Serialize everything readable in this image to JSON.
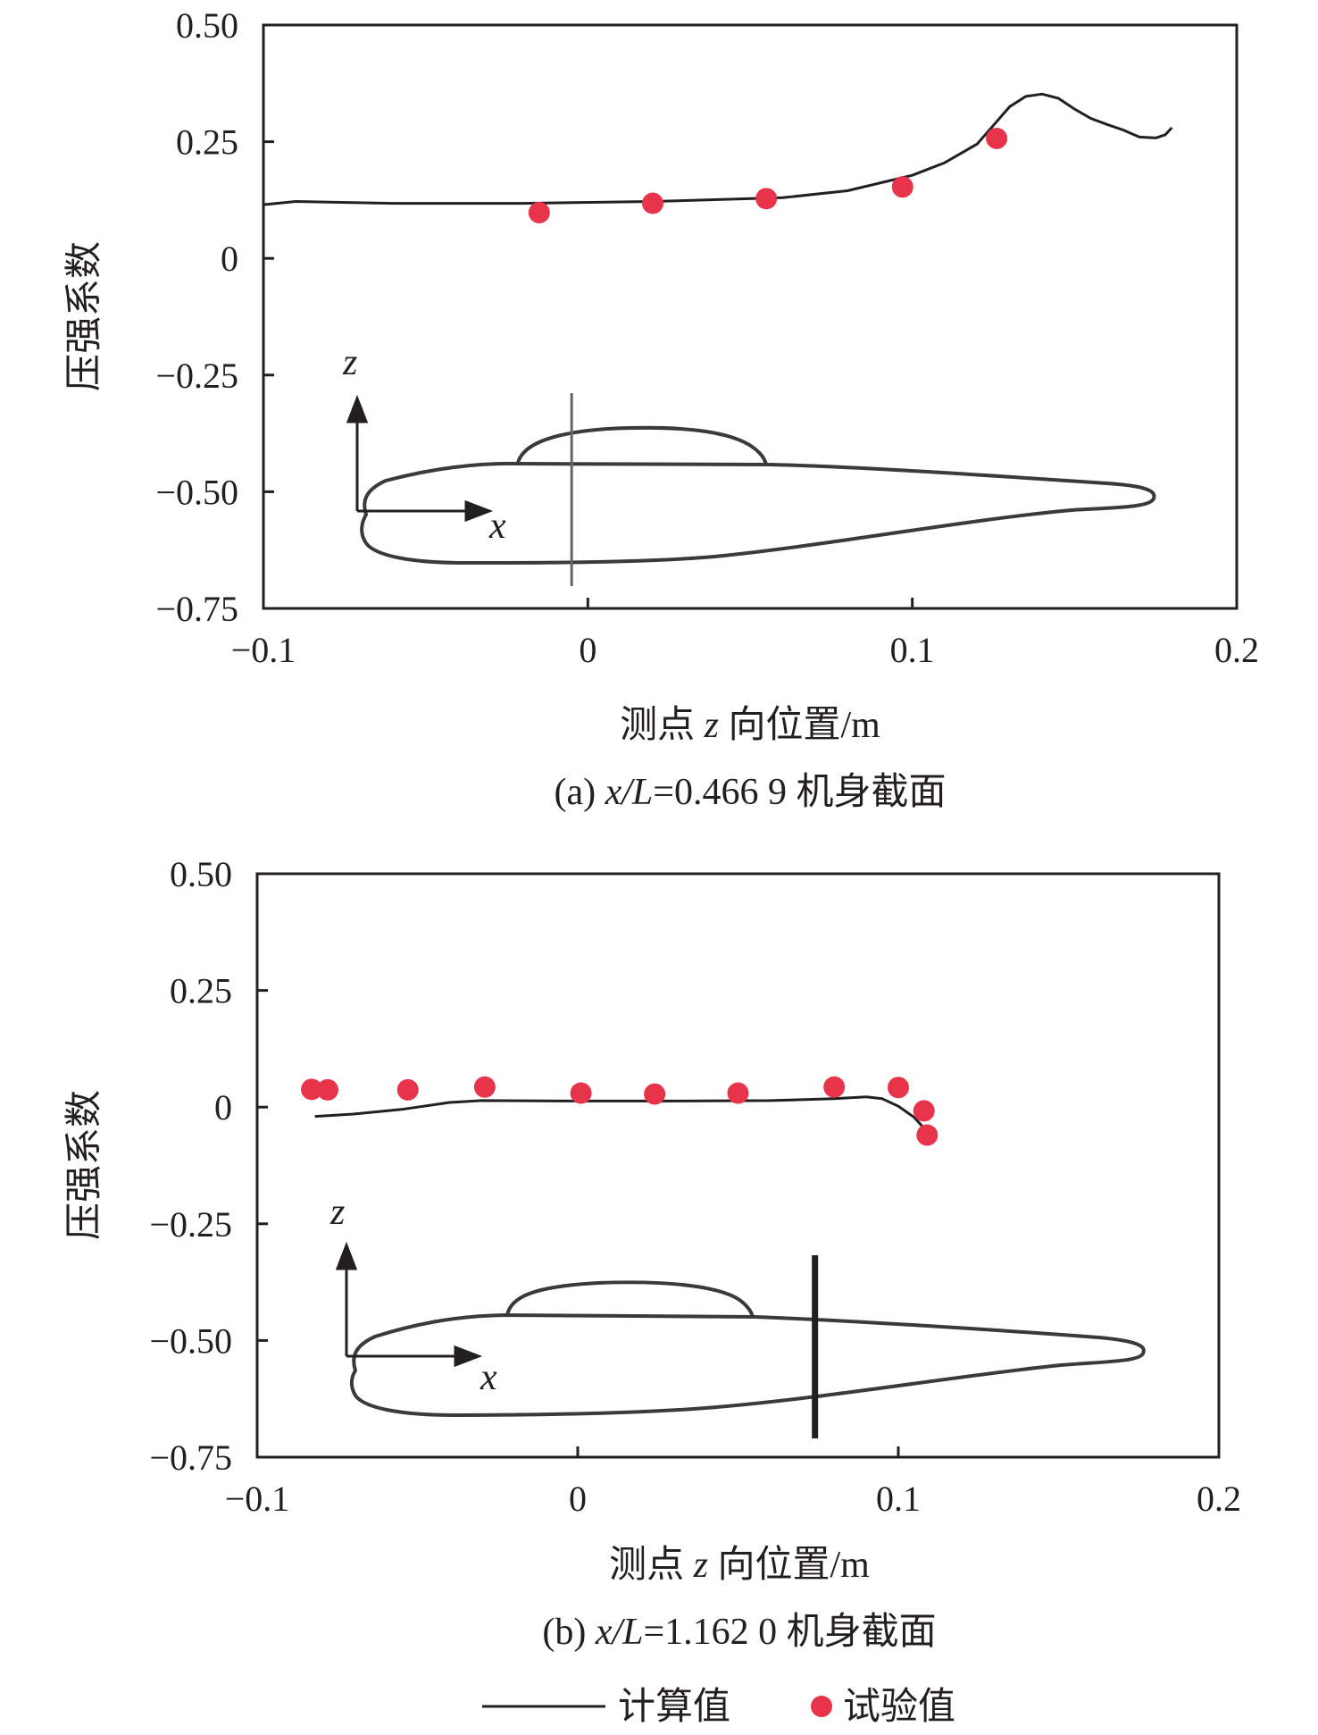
{
  "chart_data": [
    {
      "type": "line",
      "caption": "(a) x/L=0.466 9 机身截面",
      "caption_parts": {
        "prefix": "(a) ",
        "var": "x/L",
        "rest": "=0.466 9 机身截面"
      },
      "xlabel": "测点 z 向位置/m",
      "xlabel_parts": {
        "before": "测点 ",
        "var": "z",
        "after": " 向位置/m"
      },
      "ylabel": "压强系数",
      "xlim": [
        -0.1,
        0.2
      ],
      "ylim": [
        -0.75,
        0.5
      ],
      "x_ticks": [
        -0.1,
        0,
        0.1,
        0.2
      ],
      "x_tick_labels": [
        "−0.1",
        "0",
        "0.1",
        "0.2"
      ],
      "y_ticks": [
        0.5,
        0.25,
        0,
        -0.25,
        -0.5,
        -0.75
      ],
      "y_tick_labels": [
        "0.50",
        "0.25",
        "0",
        "−0.25",
        "−0.50",
        "−0.75"
      ],
      "grid": false,
      "series": [
        {
          "name": "计算值",
          "kind": "line",
          "color": "#231f20",
          "x": [
            -0.1,
            -0.09,
            -0.06,
            -0.02,
            0.02,
            0.06,
            0.08,
            0.1,
            0.11,
            0.12,
            0.125,
            0.13,
            0.135,
            0.14,
            0.145,
            0.15,
            0.155,
            0.16,
            0.165,
            0.17,
            0.175,
            0.178,
            0.18
          ],
          "y": [
            0.115,
            0.122,
            0.118,
            0.118,
            0.122,
            0.13,
            0.145,
            0.178,
            0.205,
            0.245,
            0.285,
            0.325,
            0.347,
            0.352,
            0.343,
            0.32,
            0.3,
            0.287,
            0.275,
            0.26,
            0.258,
            0.265,
            0.28
          ]
        },
        {
          "name": "试验值",
          "kind": "scatter",
          "color": "#e8344a",
          "x": [
            -0.015,
            0.02,
            0.055,
            0.097,
            0.126
          ],
          "y": [
            0.098,
            0.118,
            0.128,
            0.153,
            0.257
          ]
        }
      ],
      "inset": {
        "axis_z_label": "z",
        "axis_x_label": "x",
        "section_x": -0.005
      }
    },
    {
      "type": "line",
      "caption": "(b) x/L=1.162 0 机身截面",
      "caption_parts": {
        "prefix": "(b) ",
        "var": "x/L",
        "rest": "=1.162 0 机身截面"
      },
      "xlabel": "测点 z 向位置/m",
      "xlabel_parts": {
        "before": "测点 ",
        "var": "z",
        "after": " 向位置/m"
      },
      "ylabel": "压强系数",
      "xlim": [
        -0.1,
        0.2
      ],
      "ylim": [
        -0.75,
        0.5
      ],
      "x_ticks": [
        -0.1,
        0,
        0.1,
        0.2
      ],
      "x_tick_labels": [
        "−0.1",
        "0",
        "0.1",
        "0.2"
      ],
      "y_ticks": [
        0.5,
        0.25,
        0,
        -0.25,
        -0.5,
        -0.75
      ],
      "y_tick_labels": [
        "0.50",
        "0.25",
        "0",
        "−0.25",
        "−0.50",
        "−0.75"
      ],
      "grid": false,
      "series": [
        {
          "name": "计算值",
          "kind": "line",
          "color": "#231f20",
          "x": [
            -0.082,
            -0.07,
            -0.055,
            -0.04,
            -0.03,
            0,
            0.03,
            0.06,
            0.08,
            0.09,
            0.095,
            0.1,
            0.105,
            0.108
          ],
          "y": [
            -0.02,
            -0.015,
            -0.005,
            0.01,
            0.014,
            0.013,
            0.013,
            0.014,
            0.018,
            0.022,
            0.018,
            0.002,
            -0.022,
            -0.045
          ]
        },
        {
          "name": "试验值",
          "kind": "scatter",
          "color": "#e8344a",
          "x": [
            -0.083,
            -0.078,
            -0.053,
            -0.029,
            0.001,
            0.024,
            0.05,
            0.08,
            0.1,
            0.108,
            0.109
          ],
          "y": [
            0.038,
            0.037,
            0.037,
            0.043,
            0.03,
            0.028,
            0.03,
            0.043,
            0.042,
            -0.008,
            -0.06
          ]
        }
      ],
      "inset": {
        "axis_z_label": "z",
        "axis_x_label": "x",
        "section_x": 0.074
      }
    }
  ],
  "legend": {
    "placement": "bottom-center",
    "items": [
      {
        "label": "计算值",
        "kind": "line",
        "color": "#231f20"
      },
      {
        "label": "试验值",
        "kind": "marker",
        "color": "#e8344a"
      }
    ]
  }
}
